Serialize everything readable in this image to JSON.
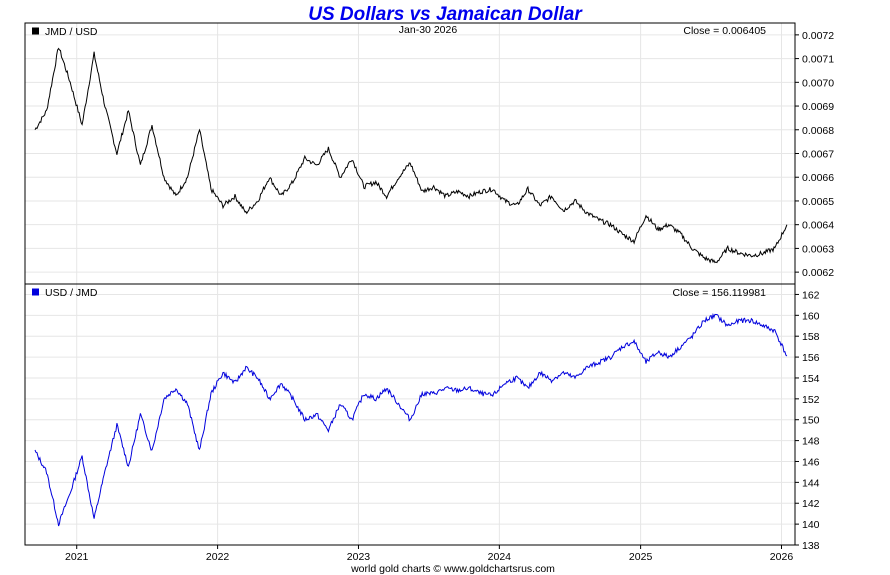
{
  "chart_title": "US Dollars vs Jamaican Dollar",
  "title_color": "#0000ee",
  "footer": "world gold charts © www.goldchartsrus.com",
  "date_label": "Jan-30  2026",
  "chart_data": [
    {
      "type": "line",
      "series_label": "JMD / USD",
      "close_label": "Close = 0.006405",
      "color": "#000000",
      "ylim": [
        0.00615,
        0.00725
      ],
      "yticks": [
        "0.0062",
        "0.0063",
        "0.0064",
        "0.0065",
        "0.0066",
        "0.0067",
        "0.0068",
        "0.0069",
        "0.0070",
        "0.0071",
        "0.0072"
      ],
      "x": [
        "2020-09",
        "2020-10",
        "2020-11",
        "2020-12",
        "2021-01",
        "2021-02",
        "2021-03",
        "2021-04",
        "2021-05",
        "2021-06",
        "2021-07",
        "2021-08",
        "2021-09",
        "2021-10",
        "2021-11",
        "2021-12",
        "2022-01",
        "2022-02",
        "2022-03",
        "2022-04",
        "2022-05",
        "2022-06",
        "2022-07",
        "2022-08",
        "2022-09",
        "2022-10",
        "2022-11",
        "2022-12",
        "2023-01",
        "2023-02",
        "2023-03",
        "2023-04",
        "2023-05",
        "2023-06",
        "2023-07",
        "2023-08",
        "2023-09",
        "2023-10",
        "2023-11",
        "2023-12",
        "2024-01",
        "2024-02",
        "2024-03",
        "2024-04",
        "2024-05",
        "2024-06",
        "2024-07",
        "2024-08",
        "2024-09",
        "2024-10",
        "2024-11",
        "2024-12",
        "2025-01",
        "2025-02",
        "2025-03",
        "2025-04",
        "2025-05",
        "2025-06",
        "2025-07",
        "2025-08",
        "2025-09",
        "2025-10",
        "2025-11",
        "2025-12",
        "2026-01"
      ],
      "values": [
        0.0068,
        0.00688,
        0.00715,
        0.007,
        0.00682,
        0.00712,
        0.0069,
        0.0067,
        0.00688,
        0.00665,
        0.00682,
        0.0066,
        0.00652,
        0.0066,
        0.0068,
        0.00655,
        0.00648,
        0.00652,
        0.00645,
        0.0065,
        0.0066,
        0.00652,
        0.00658,
        0.00668,
        0.00665,
        0.00672,
        0.0066,
        0.00668,
        0.00656,
        0.00658,
        0.00652,
        0.0066,
        0.00666,
        0.00654,
        0.00656,
        0.00652,
        0.00654,
        0.00652,
        0.00654,
        0.00655,
        0.0065,
        0.00648,
        0.00655,
        0.00648,
        0.00652,
        0.00646,
        0.0065,
        0.00645,
        0.00642,
        0.0064,
        0.00636,
        0.00633,
        0.00644,
        0.00638,
        0.0064,
        0.00636,
        0.0063,
        0.00626,
        0.00624,
        0.0063,
        0.00628,
        0.00627,
        0.00628,
        0.0063,
        0.0064
      ]
    },
    {
      "type": "line",
      "series_label": "USD / JMD",
      "close_label": "Close = 156.119981",
      "color": "#0000dd",
      "ylim": [
        138,
        163
      ],
      "yticks": [
        "138",
        "140",
        "142",
        "144",
        "146",
        "148",
        "150",
        "152",
        "154",
        "156",
        "158",
        "160",
        "162"
      ],
      "x": [
        "2020-09",
        "2020-10",
        "2020-11",
        "2020-12",
        "2021-01",
        "2021-02",
        "2021-03",
        "2021-04",
        "2021-05",
        "2021-06",
        "2021-07",
        "2021-08",
        "2021-09",
        "2021-10",
        "2021-11",
        "2021-12",
        "2022-01",
        "2022-02",
        "2022-03",
        "2022-04",
        "2022-05",
        "2022-06",
        "2022-07",
        "2022-08",
        "2022-09",
        "2022-10",
        "2022-11",
        "2022-12",
        "2023-01",
        "2023-02",
        "2023-03",
        "2023-04",
        "2023-05",
        "2023-06",
        "2023-07",
        "2023-08",
        "2023-09",
        "2023-10",
        "2023-11",
        "2023-12",
        "2024-01",
        "2024-02",
        "2024-03",
        "2024-04",
        "2024-05",
        "2024-06",
        "2024-07",
        "2024-08",
        "2024-09",
        "2024-10",
        "2024-11",
        "2024-12",
        "2025-01",
        "2025-02",
        "2025-03",
        "2025-04",
        "2025-05",
        "2025-06",
        "2025-07",
        "2025-08",
        "2025-09",
        "2025-10",
        "2025-11",
        "2025-12",
        "2026-01"
      ],
      "values": [
        147.0,
        145.0,
        140.0,
        143.0,
        146.5,
        140.5,
        145.0,
        149.5,
        145.5,
        150.5,
        147.0,
        152.0,
        153.0,
        151.5,
        147.0,
        152.5,
        154.5,
        153.5,
        155.0,
        154.0,
        152.0,
        153.5,
        152.0,
        150.0,
        150.5,
        149.0,
        151.5,
        150.0,
        152.5,
        152.0,
        153.0,
        151.5,
        150.0,
        152.5,
        152.5,
        153.0,
        152.8,
        153.0,
        152.5,
        152.3,
        153.5,
        154.0,
        153.0,
        154.5,
        153.8,
        154.5,
        154.0,
        155.0,
        155.5,
        156.0,
        157.0,
        157.5,
        155.5,
        156.5,
        156.0,
        157.0,
        158.0,
        159.5,
        160.0,
        159.0,
        159.5,
        159.5,
        159.0,
        158.5,
        156.1
      ]
    }
  ],
  "x_axis": {
    "ticks": [
      "2021",
      "2022",
      "2023",
      "2024",
      "2025",
      "2026"
    ],
    "tick_dates": [
      "2021-01-01",
      "2022-01-01",
      "2023-01-01",
      "2024-01-01",
      "2025-01-01",
      "2026-01-01"
    ]
  }
}
